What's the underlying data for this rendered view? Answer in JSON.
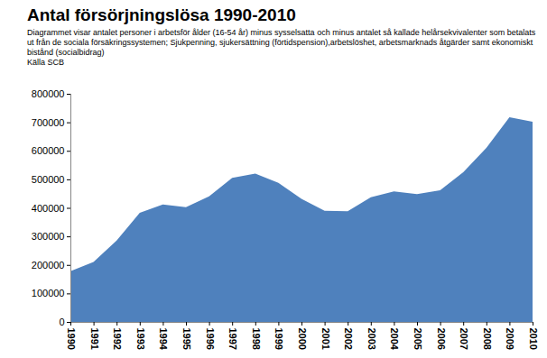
{
  "chart_data": {
    "type": "area",
    "title": "Antal försörjningslösa  1990-2010",
    "subtitle": "Diagrammet visar antalet personer i arbetsför ålder (16-54 år) minus sysselsatta och minus  antalet så kallade helårsekvivalenter som betalats ut från de sociala försäkringssystemen; Sjukpenning, sjukersättning (förtidspension),arbetslöshet, arbetsmarknads åtgärder samt ekonomiskt bistånd (socialbidrag)",
    "source": "Källa SCB",
    "x": [
      1990,
      1991,
      1992,
      1993,
      1994,
      1995,
      1996,
      1997,
      1998,
      1999,
      2000,
      2001,
      2002,
      2003,
      2004,
      2005,
      2006,
      2007,
      2008,
      2009,
      2010
    ],
    "values": [
      178000,
      210000,
      285000,
      383000,
      412000,
      402000,
      440000,
      505000,
      520000,
      488000,
      432000,
      390000,
      388000,
      437000,
      458000,
      448000,
      462000,
      525000,
      610000,
      718000,
      702000
    ],
    "color": "#4f81bd",
    "xlim": [
      1990,
      2010
    ],
    "xticks": [
      1990,
      1991,
      1992,
      1993,
      1994,
      1995,
      1996,
      1997,
      1998,
      1999,
      2000,
      2001,
      2002,
      2003,
      2004,
      2005,
      2006,
      2007,
      2008,
      2009,
      2010
    ],
    "ylim": [
      0,
      800000
    ],
    "yticks": [
      0,
      100000,
      200000,
      300000,
      400000,
      500000,
      600000,
      700000,
      800000
    ],
    "grid": false
  }
}
